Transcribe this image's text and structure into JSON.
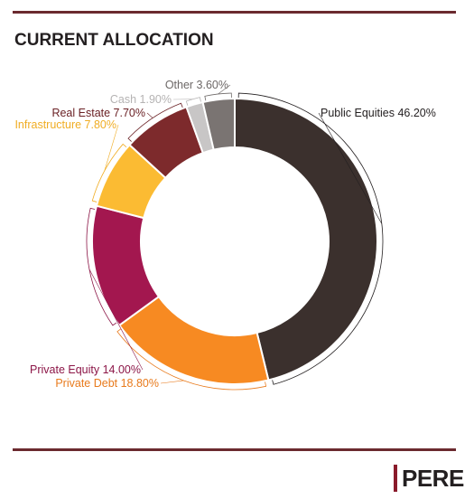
{
  "title": "CURRENT ALLOCATION",
  "logo": {
    "text": "PERE"
  },
  "chart_data": {
    "type": "pie",
    "donut": true,
    "title": "CURRENT ALLOCATION",
    "slices": [
      {
        "label": "Public Equities 46.20%",
        "name": "Public Equities",
        "value": 46.2,
        "color": "#3b302d",
        "label_color": "#231f20"
      },
      {
        "label": "Private Debt 18.80%",
        "name": "Private Debt",
        "value": 18.8,
        "color": "#f78a22",
        "label_color": "#e87a1c"
      },
      {
        "label": "Private Equity 14.00%",
        "name": "Private Equity",
        "value": 14.0,
        "color": "#a3174f",
        "label_color": "#8c1647"
      },
      {
        "label": "Infrastructure 7.80%",
        "name": "Infrastructure",
        "value": 7.8,
        "color": "#fbbb33",
        "label_color": "#f0ad24"
      },
      {
        "label": "Real Estate 7.70%",
        "name": "Real Estate",
        "value": 7.7,
        "color": "#7d2a2c",
        "label_color": "#6b2226"
      },
      {
        "label": "Cash 1.90%",
        "name": "Cash",
        "value": 1.9,
        "color": "#c8c6c6",
        "label_color": "#b5b3b3"
      },
      {
        "label": "Other 3.60%",
        "name": "Other",
        "value": 3.6,
        "color": "#7a7472",
        "label_color": "#6d6867"
      }
    ]
  }
}
